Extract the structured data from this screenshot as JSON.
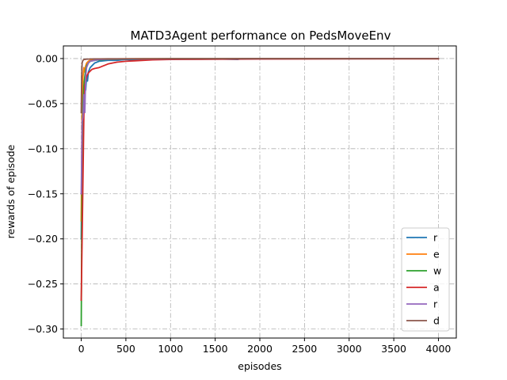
{
  "chart_data": {
    "type": "line",
    "title": "MATD3Agent performance on PedsMoveEnv",
    "xlabel": "episodes",
    "ylabel": "rewards of episode",
    "xlim": [
      -200,
      4200
    ],
    "ylim": [
      -0.31,
      0.014
    ],
    "xticks": [
      0,
      500,
      1000,
      1500,
      2000,
      2500,
      3000,
      3500,
      4000
    ],
    "yticks": [
      0.0,
      -0.05,
      -0.1,
      -0.15,
      -0.2,
      -0.25,
      -0.3
    ],
    "ytick_labels": [
      "0.00",
      "−0.05",
      "−0.10",
      "−0.15",
      "−0.20",
      "−0.25",
      "−0.30"
    ],
    "grid": true,
    "legend_position": "lower right",
    "series": [
      {
        "name": "r",
        "color": "#1f77b4",
        "x": [
          0,
          10,
          20,
          30,
          40,
          50,
          60,
          70,
          80,
          100,
          120,
          150,
          200,
          300,
          400,
          500,
          600,
          700,
          800,
          1000,
          1500,
          1750,
          1800,
          2000,
          2500,
          3000,
          3500,
          4000
        ],
        "values": [
          -0.2,
          -0.08,
          -0.05,
          -0.045,
          -0.03,
          -0.035,
          -0.02,
          -0.025,
          -0.015,
          -0.01,
          -0.008,
          -0.005,
          -0.003,
          -0.002,
          -0.002,
          -0.001,
          -0.002,
          -0.001,
          -0.0005,
          -0.0003,
          -0.0003,
          -0.001,
          -0.0002,
          -0.0002,
          -0.0002,
          -0.0002,
          -0.0001,
          -0.0001
        ]
      },
      {
        "name": "e",
        "color": "#ff7f0e",
        "x": [
          0,
          10,
          20,
          30,
          40,
          50,
          60,
          80,
          100,
          150,
          200,
          300,
          500,
          1000,
          2000,
          3000,
          4000
        ],
        "values": [
          -0.18,
          -0.05,
          -0.02,
          -0.01,
          -0.015,
          -0.008,
          -0.005,
          -0.003,
          -0.002,
          -0.001,
          -0.001,
          -0.0005,
          -0.0003,
          -0.0002,
          -0.0001,
          -0.0001,
          -0.0001
        ]
      },
      {
        "name": "w",
        "color": "#2ca02c",
        "x": [
          0,
          5,
          10,
          15,
          20,
          30,
          40,
          50,
          60,
          80,
          100,
          150,
          200,
          300,
          500,
          1000,
          2000,
          3000,
          4000
        ],
        "values": [
          -0.296,
          -0.2,
          -0.12,
          -0.08,
          -0.05,
          -0.03,
          -0.02,
          -0.012,
          -0.008,
          -0.005,
          -0.003,
          -0.002,
          -0.0015,
          -0.001,
          -0.0006,
          -0.0003,
          -0.0002,
          -0.0001,
          -0.0001
        ]
      },
      {
        "name": "a",
        "color": "#d62728",
        "x": [
          0,
          10,
          20,
          30,
          40,
          50,
          60,
          70,
          80,
          100,
          120,
          150,
          200,
          250,
          300,
          400,
          500,
          600,
          700,
          800,
          1000,
          1500,
          2000,
          2500,
          3000,
          3500,
          4000
        ],
        "values": [
          -0.268,
          -0.2,
          -0.13,
          -0.06,
          -0.03,
          -0.025,
          -0.02,
          -0.018,
          -0.016,
          -0.014,
          -0.012,
          -0.011,
          -0.01,
          -0.008,
          -0.006,
          -0.004,
          -0.003,
          -0.0025,
          -0.002,
          -0.0015,
          -0.001,
          -0.0008,
          -0.0006,
          -0.0005,
          -0.0004,
          -0.0003,
          -0.0003
        ]
      },
      {
        "name": "r",
        "color": "#9467bd",
        "x": [
          0,
          10,
          20,
          30,
          40,
          50,
          60,
          80,
          100,
          150,
          200,
          300,
          500,
          1000,
          2000,
          3000,
          4000
        ],
        "values": [
          -0.15,
          -0.07,
          -0.065,
          -0.04,
          -0.06,
          -0.02,
          -0.01,
          -0.005,
          -0.003,
          -0.002,
          -0.001,
          -0.0008,
          -0.0005,
          -0.0003,
          -0.0002,
          -0.0001,
          -0.0001
        ]
      },
      {
        "name": "d",
        "color": "#8c564b",
        "x": [
          0,
          5,
          10,
          15,
          20,
          25,
          30,
          40,
          50,
          60,
          80,
          100,
          150,
          200,
          300,
          500,
          700,
          1000,
          1500,
          2000,
          2500,
          3000,
          3500,
          4000
        ],
        "values": [
          -0.06,
          -0.02,
          -0.005,
          -0.003,
          -0.002,
          -0.0015,
          -0.001,
          -0.001,
          -0.0008,
          -0.0007,
          -0.0006,
          -0.0005,
          -0.0004,
          -0.0004,
          -0.0003,
          -0.0003,
          -0.0002,
          -0.0002,
          -0.0002,
          -0.0001,
          -0.0001,
          -0.0001,
          -0.0001,
          -0.0001
        ]
      }
    ]
  }
}
